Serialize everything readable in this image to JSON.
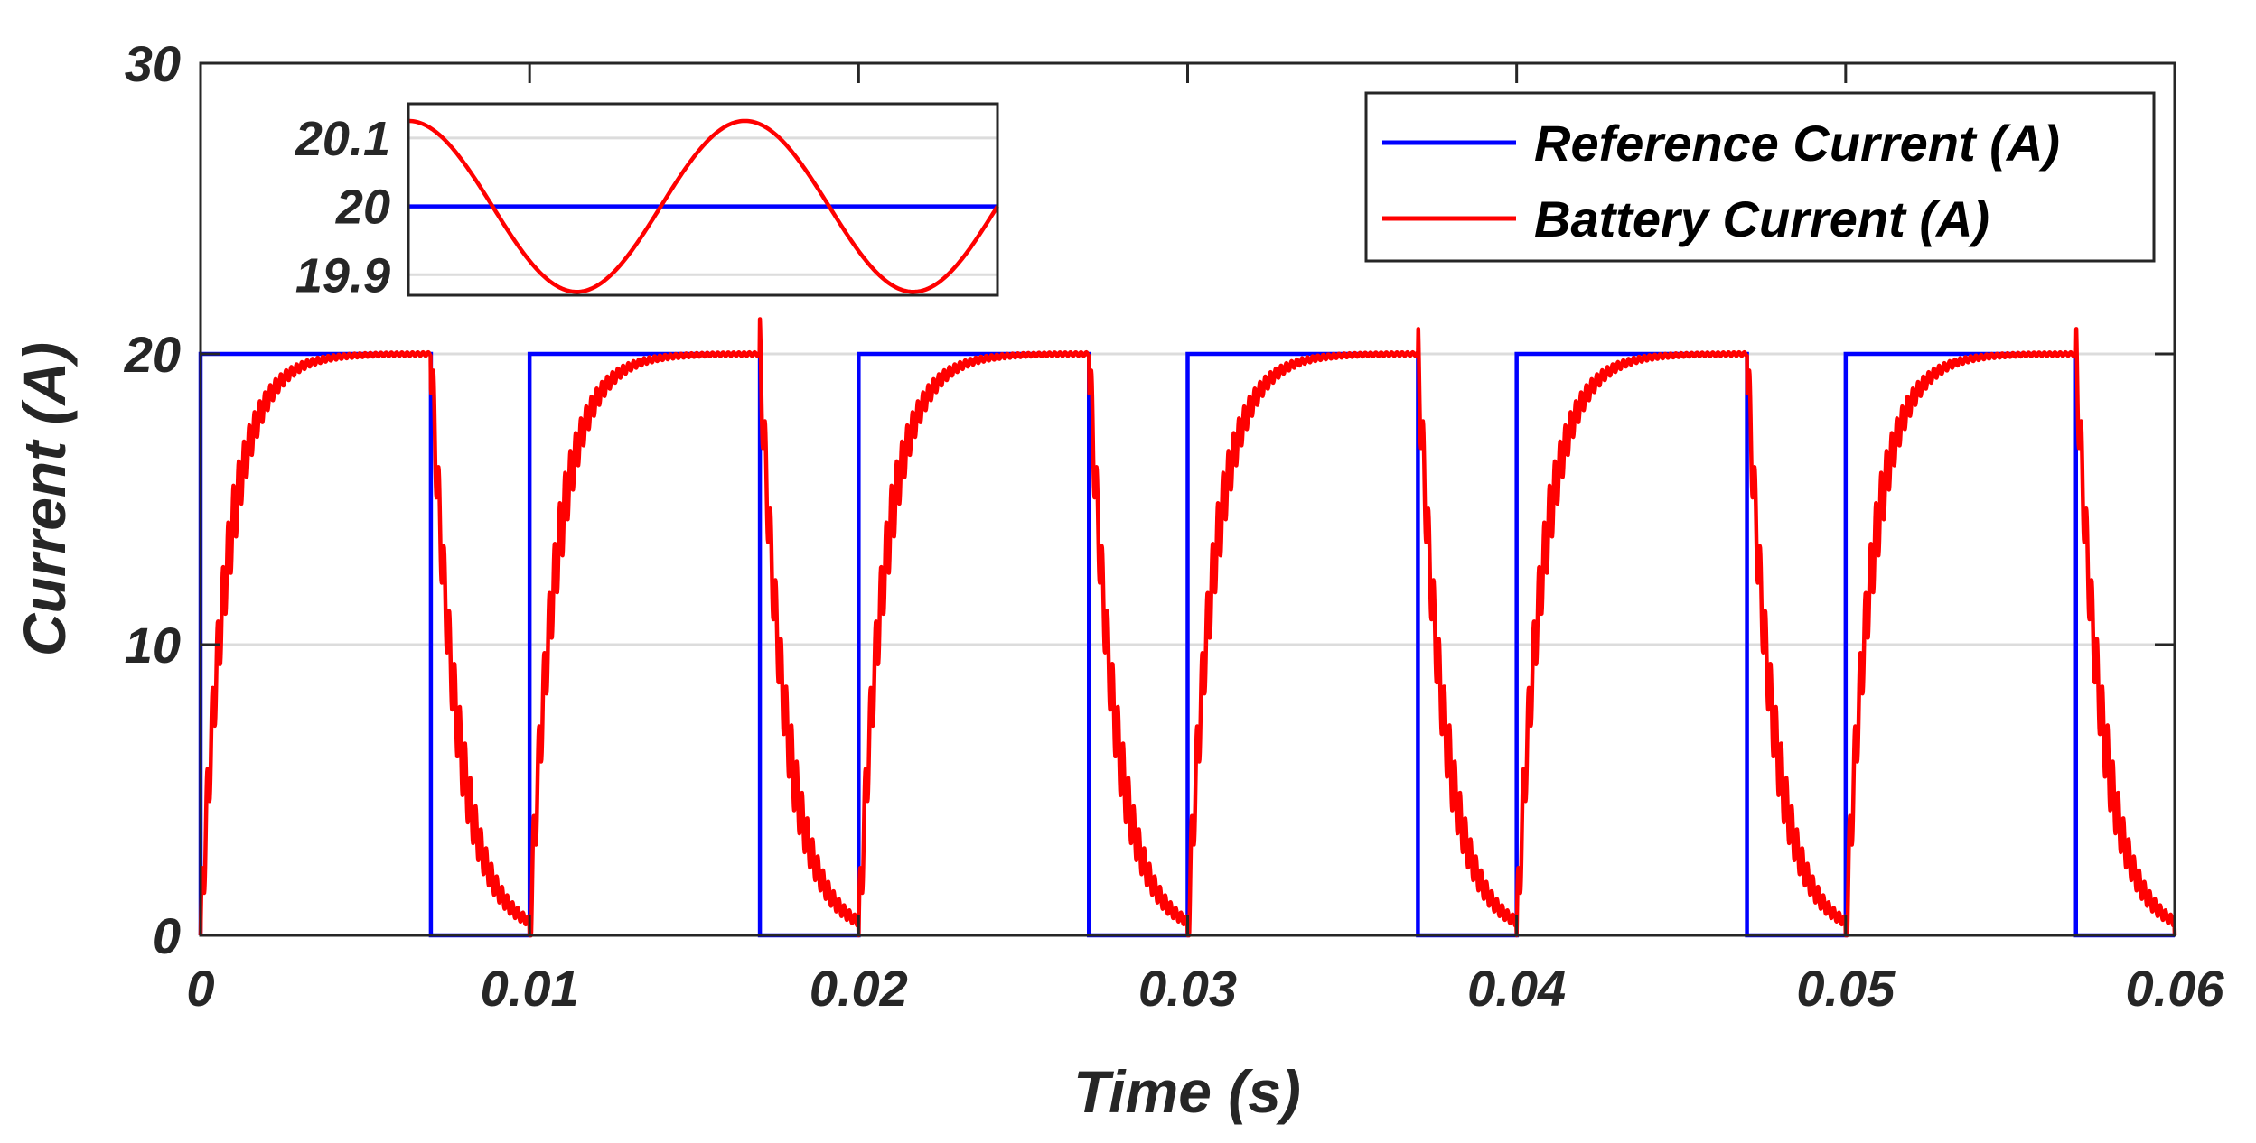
{
  "chart_data": [
    {
      "id": "main",
      "type": "line",
      "title": "",
      "xlabel": "Time (s)",
      "ylabel": "Current (A)",
      "xlim": [
        0,
        0.06
      ],
      "ylim": [
        0,
        30
      ],
      "x_ticks": [
        0,
        0.01,
        0.02,
        0.03,
        0.04,
        0.05,
        0.06
      ],
      "x_tick_labels": [
        "0",
        "0.01",
        "0.02",
        "0.03",
        "0.04",
        "0.05",
        "0.06"
      ],
      "y_ticks": [
        0,
        10,
        20,
        30
      ],
      "y_tick_labels": [
        "0",
        "10",
        "20",
        "30"
      ],
      "grid": "horizontal",
      "legend_position": "top-right",
      "pwm": {
        "period": 0.01,
        "duty_on_time": 0.007,
        "amplitude": 20,
        "tau_rise": 0.0008,
        "tau_fall": 0.0008,
        "ripple": 1.2
      },
      "series": [
        {
          "name": "Reference Current (A)",
          "color": "#0000FF",
          "description": "square wave 0-20 A, on for 0.007 s every 0.01 s"
        },
        {
          "name": "Battery Current (A)",
          "color": "#FF0000",
          "description": "first-order response to reference with switching ripple"
        }
      ]
    },
    {
      "id": "inset",
      "type": "line",
      "xlim": [
        0,
        1
      ],
      "ylim": [
        19.87,
        20.15
      ],
      "y_ticks": [
        19.9,
        20,
        20.1
      ],
      "y_tick_labels": [
        "19.9",
        "20",
        "20.1"
      ],
      "grid": "horizontal",
      "series": [
        {
          "name": "Reference Current (A)",
          "color": "#0000FF",
          "value": 20
        },
        {
          "name": "Battery Current (A)",
          "color": "#FF0000",
          "center": 20,
          "amplitude": 0.125,
          "cycles": 1.75,
          "phase_deg": 90
        }
      ]
    }
  ]
}
